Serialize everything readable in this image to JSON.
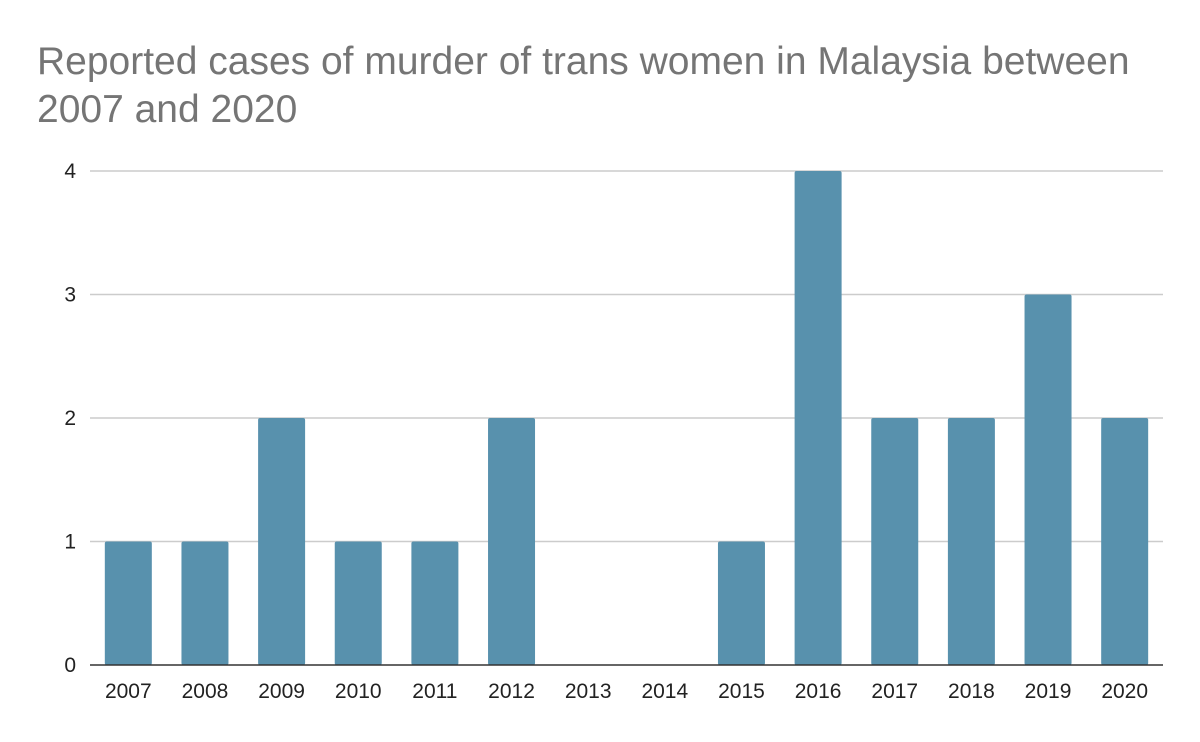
{
  "chart_data": {
    "type": "bar",
    "title": "Reported cases of murder of trans women in Malaysia between 2007 and 2020",
    "xlabel": "",
    "ylabel": "",
    "categories": [
      "2007",
      "2008",
      "2009",
      "2010",
      "2011",
      "2012",
      "2013",
      "2014",
      "2015",
      "2016",
      "2017",
      "2018",
      "2019",
      "2020"
    ],
    "values": [
      1,
      1,
      2,
      1,
      1,
      2,
      0,
      0,
      1,
      4,
      2,
      2,
      3,
      2
    ],
    "ylim": [
      0,
      4
    ],
    "yticks": [
      "0",
      "1",
      "2",
      "3",
      "4"
    ],
    "grid": true,
    "legend": "none",
    "bar_color": "#5891ad",
    "grid_color": "#cccccc",
    "axis_color": "#333333"
  }
}
